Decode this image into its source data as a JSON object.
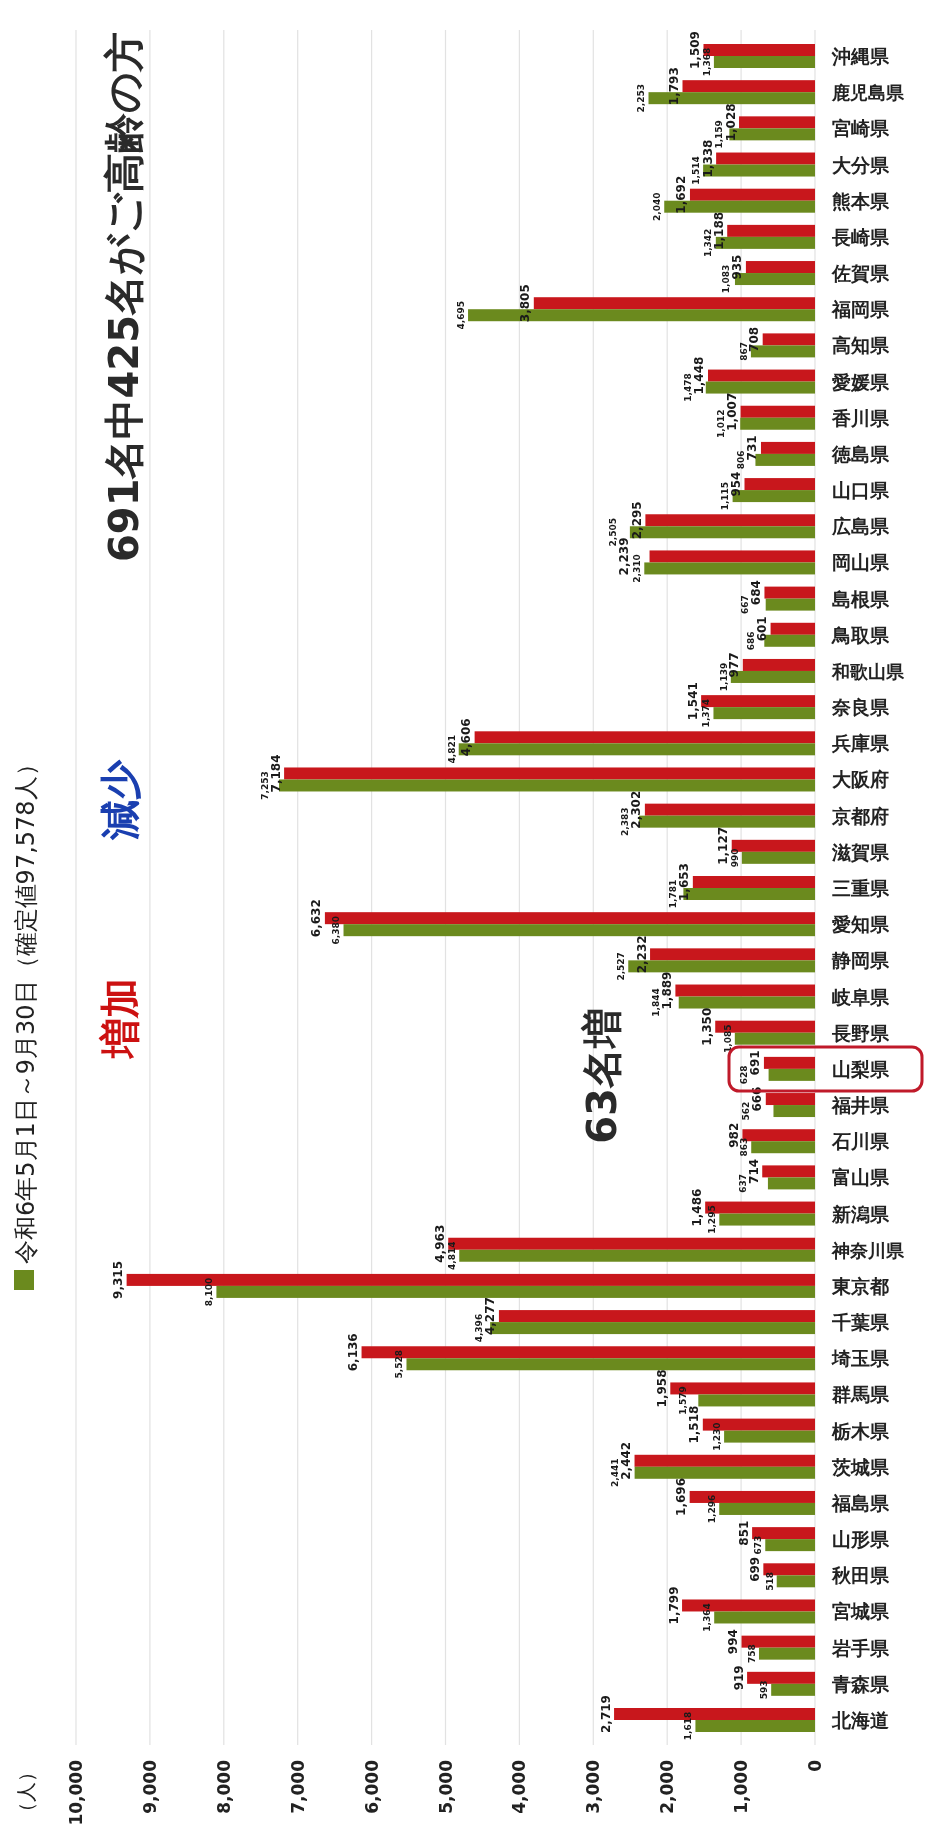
{
  "chart_data": {
    "type": "bar",
    "orientation": "horizontal",
    "title": "691名中425名がご高齢の方",
    "categories": [
      "沖縄県",
      "鹿児島県",
      "宮崎県",
      "大分県",
      "熊本県",
      "長崎県",
      "佐賀県",
      "福岡県",
      "高知県",
      "愛媛県",
      "香川県",
      "徳島県",
      "山口県",
      "広島県",
      "岡山県",
      "島根県",
      "鳥取県",
      "和歌山県",
      "奈良県",
      "兵庫県",
      "大阪府",
      "京都府",
      "滋賀県",
      "三重県",
      "愛知県",
      "静岡県",
      "岐阜県",
      "長野県",
      "山梨県",
      "福井県",
      "石川県",
      "富山県",
      "新潟県",
      "神奈川県",
      "東京都",
      "千葉県",
      "埼玉県",
      "群馬県",
      "栃木県",
      "茨城県",
      "福島県",
      "山形県",
      "秋田県",
      "宮城県",
      "岩手県",
      "青森県",
      "北海道"
    ],
    "series": [
      {
        "color": "#c8171c",
        "values": [
          1509,
          1793,
          1028,
          1338,
          1692,
          1188,
          935,
          3805,
          708,
          1448,
          1007,
          731,
          954,
          2295,
          2239,
          684,
          601,
          977,
          1541,
          4606,
          7184,
          2302,
          1127,
          1653,
          6632,
          2232,
          1889,
          1350,
          691,
          666,
          982,
          714,
          1486,
          4963,
          9315,
          4277,
          6136,
          1958,
          1518,
          2442,
          1696,
          851,
          699,
          1799,
          994,
          919,
          2719
        ],
        "value_labels": [
          "1,509",
          "1,793",
          "1,028",
          "1,338",
          "1,692",
          "1,188",
          "935",
          "3,805",
          "708",
          "1,448",
          "1,007",
          "731",
          "954",
          "2,295",
          "2,239",
          "684",
          "601",
          "977",
          "1,541",
          "4,606",
          "7,184",
          "2,302",
          "1,127",
          "1,653",
          "6,632",
          "2,232",
          "1,889",
          "1,350",
          "691",
          "666",
          "982",
          "714",
          "1,486",
          "4,963",
          "9,315",
          "4,277",
          "6,136",
          "1,958",
          "1,518",
          "2,442",
          "1,696",
          "851",
          "699",
          "1,799",
          "994",
          "919",
          "2,719"
        ]
      },
      {
        "name": "令和6年5月1日～9月30日（確定値97,578人）",
        "color": "#6b8a1e",
        "values": [
          1368,
          2253,
          1159,
          1514,
          2040,
          1342,
          1083,
          4695,
          867,
          1478,
          1012,
          806,
          1115,
          2505,
          2310,
          667,
          686,
          1139,
          1374,
          4821,
          7253,
          2383,
          990,
          1781,
          6380,
          2527,
          1844,
          1085,
          628,
          562,
          863,
          637,
          1295,
          4814,
          8100,
          4396,
          5528,
          1579,
          1230,
          2441,
          1296,
          673,
          518,
          1364,
          758,
          593,
          1618
        ],
        "value_labels": [
          "1,368",
          "2,253",
          "1,159",
          "1,514",
          "2,040",
          "1,342",
          "1,083",
          "4,695",
          "867",
          "1,478",
          "1,012",
          "806",
          "1,115",
          "2,505",
          "2,310",
          "667",
          "686",
          "1,139",
          "1,374",
          "4,821",
          "7,253",
          "2,383",
          "990",
          "1,781",
          "6,380",
          "2,527",
          "1,844",
          "1,085",
          "628",
          "562",
          "863",
          "637",
          "1,295",
          "4,814",
          "8,100",
          "4,396",
          "5,528",
          "1,579",
          "1,230",
          "2,441",
          "1,296",
          "673",
          "518",
          "1,364",
          "758",
          "593",
          "1,618"
        ]
      }
    ],
    "xlim": [
      10000,
      0
    ],
    "xticks": [
      {
        "value": 10000,
        "label": "10,000"
      },
      {
        "value": 9000,
        "label": "9,000"
      },
      {
        "value": 8000,
        "label": "8,000"
      },
      {
        "value": 7000,
        "label": "7,000"
      },
      {
        "value": 6000,
        "label": "6,000"
      },
      {
        "value": 5000,
        "label": "5,000"
      },
      {
        "value": 4000,
        "label": "4,000"
      },
      {
        "value": 3000,
        "label": "3,000"
      },
      {
        "value": 2000,
        "label": "2,000"
      },
      {
        "value": 1000,
        "label": "1,000"
      },
      0
    ],
    "grid": "x",
    "legend": "left",
    "annotations": [
      "増加",
      "減少",
      "63名増",
      "（人）"
    ]
  }
}
